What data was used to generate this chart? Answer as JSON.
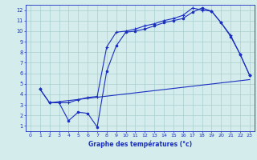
{
  "xlabel": "Graphe des températures (°c)",
  "bg_color": "#d4eceb",
  "line_color": "#1a2fc0",
  "grid_color": "#a8cece",
  "xlim": [
    -0.5,
    23.5
  ],
  "ylim": [
    0.5,
    12.5
  ],
  "xticks": [
    0,
    1,
    2,
    3,
    4,
    5,
    6,
    7,
    8,
    9,
    10,
    11,
    12,
    13,
    14,
    15,
    16,
    17,
    18,
    19,
    20,
    21,
    22,
    23
  ],
  "yticks": [
    1,
    2,
    3,
    4,
    5,
    6,
    7,
    8,
    9,
    10,
    11,
    12
  ],
  "line1_x": [
    1,
    2,
    3,
    4,
    5,
    6,
    7,
    8,
    9,
    10,
    11,
    12,
    13,
    14,
    15,
    16,
    17,
    18,
    19,
    20,
    21,
    22,
    23
  ],
  "line1_y": [
    4.5,
    3.2,
    3.2,
    3.2,
    3.5,
    3.7,
    3.8,
    8.5,
    9.9,
    10.0,
    10.2,
    10.5,
    10.7,
    11.0,
    11.2,
    11.5,
    12.2,
    12.0,
    11.9,
    10.8,
    9.6,
    7.8,
    5.8
  ],
  "line2_x": [
    1,
    2,
    3,
    4,
    5,
    6,
    7,
    8,
    9,
    10,
    11,
    12,
    13,
    14,
    15,
    16,
    17,
    18,
    19,
    20,
    21,
    22,
    23
  ],
  "line2_y": [
    4.5,
    3.2,
    3.2,
    1.5,
    2.3,
    2.2,
    0.9,
    6.2,
    8.6,
    9.9,
    10.0,
    10.2,
    10.5,
    10.8,
    11.0,
    11.2,
    11.8,
    12.2,
    11.9,
    10.8,
    9.5,
    7.8,
    5.8
  ],
  "line3_x": [
    2,
    23
  ],
  "line3_y": [
    3.2,
    5.4
  ]
}
